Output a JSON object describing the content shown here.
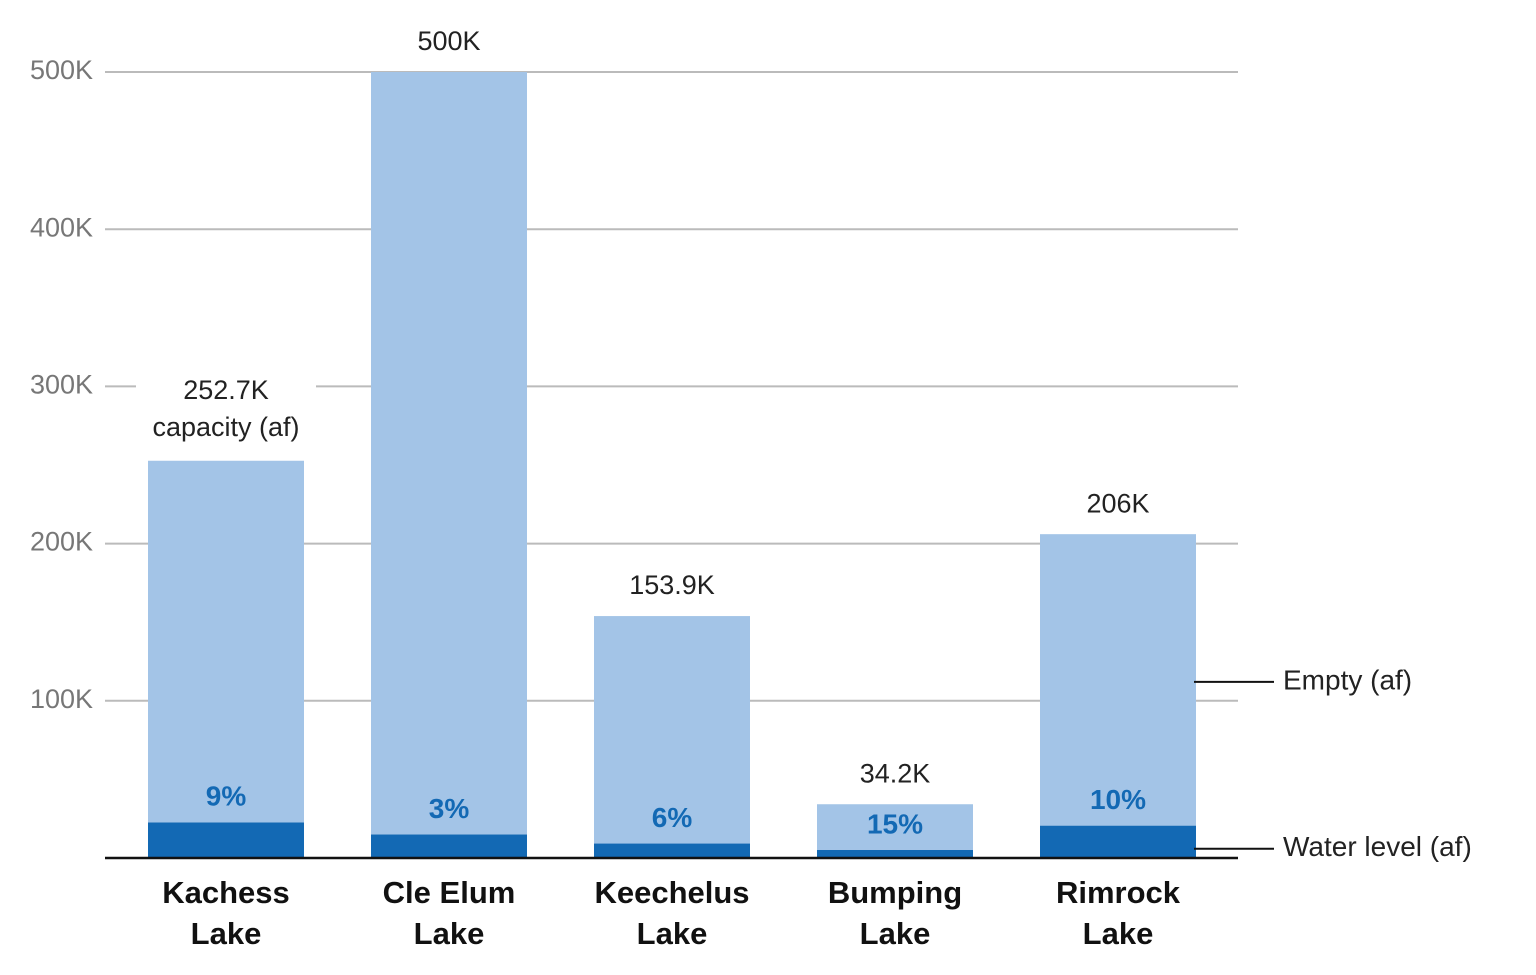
{
  "chart_data": {
    "type": "stacked_bar",
    "categories": [
      [
        "Kachess",
        "Lake"
      ],
      [
        "Cle Elum",
        "Lake"
      ],
      [
        "Keechelus",
        "Lake"
      ],
      [
        "Bumping",
        "Lake"
      ],
      [
        "Rimrock",
        "Lake"
      ]
    ],
    "series": [
      {
        "name": "Water level (af)",
        "color": "#1369b4",
        "values": [
          22700,
          15000,
          9200,
          5100,
          20600
        ]
      },
      {
        "name": "Empty (af)",
        "color": "#a3c4e7",
        "values": [
          230000,
          485000,
          144700,
          29100,
          185400
        ]
      }
    ],
    "percent_labels": [
      "9%",
      "3%",
      "6%",
      "15%",
      "10%"
    ],
    "percent_color": "#1369b4",
    "totals": [
      252700,
      500000,
      153900,
      34200,
      206000
    ],
    "total_labels": [
      "252.7K",
      "500K",
      "153.9K",
      "34.2K",
      "206K"
    ],
    "total_note": "capacity (af)",
    "ylim": [
      0,
      500000
    ],
    "yticks": [
      {
        "value": 100000,
        "label": "100K"
      },
      {
        "value": 200000,
        "label": "200K"
      },
      {
        "value": 300000,
        "label": "300K"
      },
      {
        "value": 400000,
        "label": "400K"
      },
      {
        "value": 500000,
        "label": "500K"
      }
    ],
    "grid": true,
    "legend": "right"
  }
}
